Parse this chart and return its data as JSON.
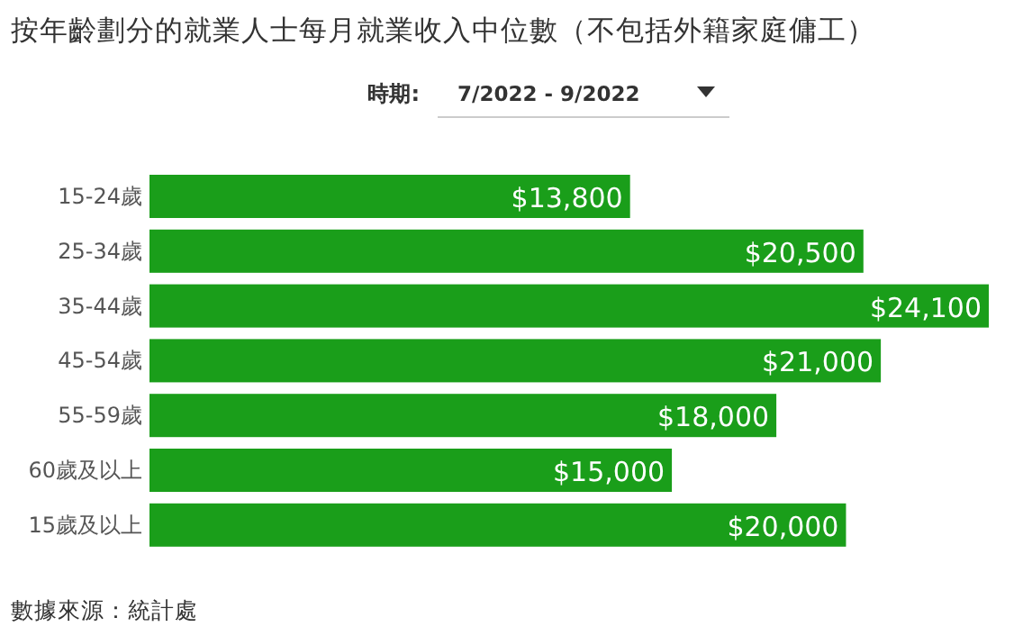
{
  "chart_data": {
    "type": "bar",
    "orientation": "horizontal",
    "title": "按年齡劃分的就業人士每月就業收入中位數（不包括外籍家庭傭工）",
    "subtitle": "時期:",
    "categories": [
      "15-24歲",
      "25-34歲",
      "35-44歲",
      "45-54歲",
      "55-59歲",
      "60歲及以上",
      "15歲及以上"
    ],
    "values": [
      13800,
      20500,
      24100,
      21000,
      18000,
      15000,
      20000
    ],
    "value_labels": [
      "$13,800",
      "$20,500",
      "$24,100",
      "$21,000",
      "$18,000",
      "$15,000",
      "$20,000"
    ],
    "color": "#1a9e1a",
    "annotations": [
      "7/2022 - 9/2022",
      "數據來源：統計處"
    ]
  }
}
